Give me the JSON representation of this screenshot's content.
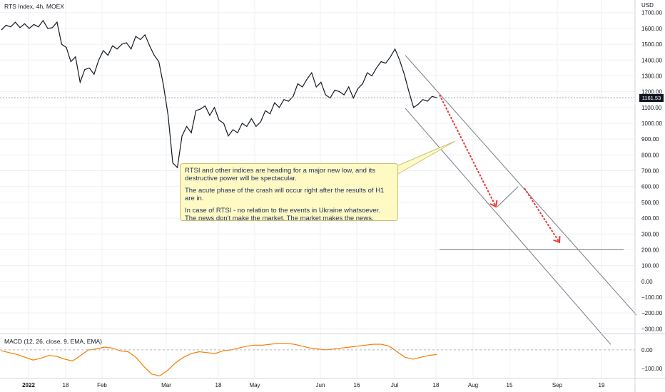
{
  "chart_data": [
    {
      "type": "line",
      "title": "RTS Index, 4h, MOEX",
      "currency": "USD",
      "last_price_label": "1161.53",
      "last_price": 1161.53,
      "ylim": [
        -330,
        1780
      ],
      "y_ticks": [
        1700,
        1600,
        1500,
        1400,
        1300,
        1200,
        1100,
        1000,
        900,
        800,
        700,
        600,
        500,
        400,
        300,
        200,
        100,
        0,
        -100,
        -200,
        -300
      ],
      "y_tick_labels": [
        "1700.00",
        "1600.00",
        "1500.00",
        "1400.00",
        "1300.00",
        "1200.00",
        "1100.00",
        "1000.00",
        "900.00",
        "800.00",
        "700.00",
        "600.00",
        "500.00",
        "400.00",
        "300.00",
        "200.00",
        "100.00",
        "0.00",
        "−100.00",
        "−200.00",
        "−300.00"
      ],
      "x_tick_labels": [
        "2022",
        "18",
        "Feb",
        "Mar",
        "18",
        "May",
        "Jun",
        "16",
        "Jul",
        "18",
        "Aug",
        "15",
        "Sep",
        "19"
      ],
      "series": [
        {
          "values": [
            1590,
            1620,
            1610,
            1640,
            1605,
            1630,
            1600,
            1625,
            1610,
            1650,
            1600,
            1605,
            1640,
            1500,
            1480,
            1390,
            1420,
            1260,
            1340,
            1350,
            1310,
            1400,
            1460,
            1430,
            1490,
            1470,
            1500,
            1510,
            1470,
            1550,
            1530,
            1560,
            1490,
            1430,
            1390,
            1240,
            1050,
            750,
            720,
            920,
            980,
            940,
            1080,
            1090,
            1110,
            1050,
            1100,
            1020,
            1000,
            920,
            960,
            940,
            1000,
            980,
            1030,
            980,
            1010,
            1080,
            1060,
            1130,
            1100,
            1150,
            1140,
            1170,
            1250,
            1230,
            1280,
            1320,
            1230,
            1260,
            1180,
            1160,
            1210,
            1200,
            1180,
            1230,
            1160,
            1220,
            1250,
            1320,
            1300,
            1350,
            1390,
            1380,
            1420,
            1470,
            1400,
            1310,
            1200,
            1100,
            1120,
            1150,
            1140,
            1170,
            1162
          ]
        }
      ],
      "annotation": {
        "lines": [
          "RTSI and other indices are heading for a major new low, and its destructive power will be spectacular.",
          "The acute phase of the crash will occur right after the results of H1 are in.",
          "In case of RTSI - no relation to the events in Ukraine whatsoever. The news don't make the market. The market makes the news."
        ]
      },
      "drawings": {
        "channel_upper": [
          [
            1430,
            0.0
          ],
          [
            -213,
            1.0
          ]
        ],
        "channel_lower": [
          [
            1095,
            0.0
          ],
          [
            -345,
            1.0
          ]
        ],
        "horizontal_level": 200,
        "arrow_color": "#e53935"
      }
    },
    {
      "type": "line",
      "title": "MACD (12, 26, close, 9, EMA, EMA)",
      "ylim": [
        -150,
        80
      ],
      "y_ticks": [
        0,
        -100
      ],
      "y_tick_labels": [
        "0.00",
        "−100.00"
      ],
      "series": [
        {
          "color": "#f57c00",
          "values": [
            -5,
            -15,
            -25,
            -40,
            -55,
            -45,
            -30,
            -35,
            -50,
            -60,
            -30,
            0,
            5,
            15,
            10,
            -5,
            -10,
            -40,
            -90,
            -130,
            -140,
            -110,
            -70,
            -40,
            -20,
            -10,
            -15,
            -20,
            -5,
            0,
            10,
            20,
            25,
            25,
            30,
            35,
            35,
            30,
            20,
            10,
            5,
            0,
            5,
            10,
            15,
            20,
            25,
            30,
            30,
            20,
            -10,
            -40,
            -50,
            -40,
            -30,
            -25
          ]
        }
      ]
    }
  ]
}
